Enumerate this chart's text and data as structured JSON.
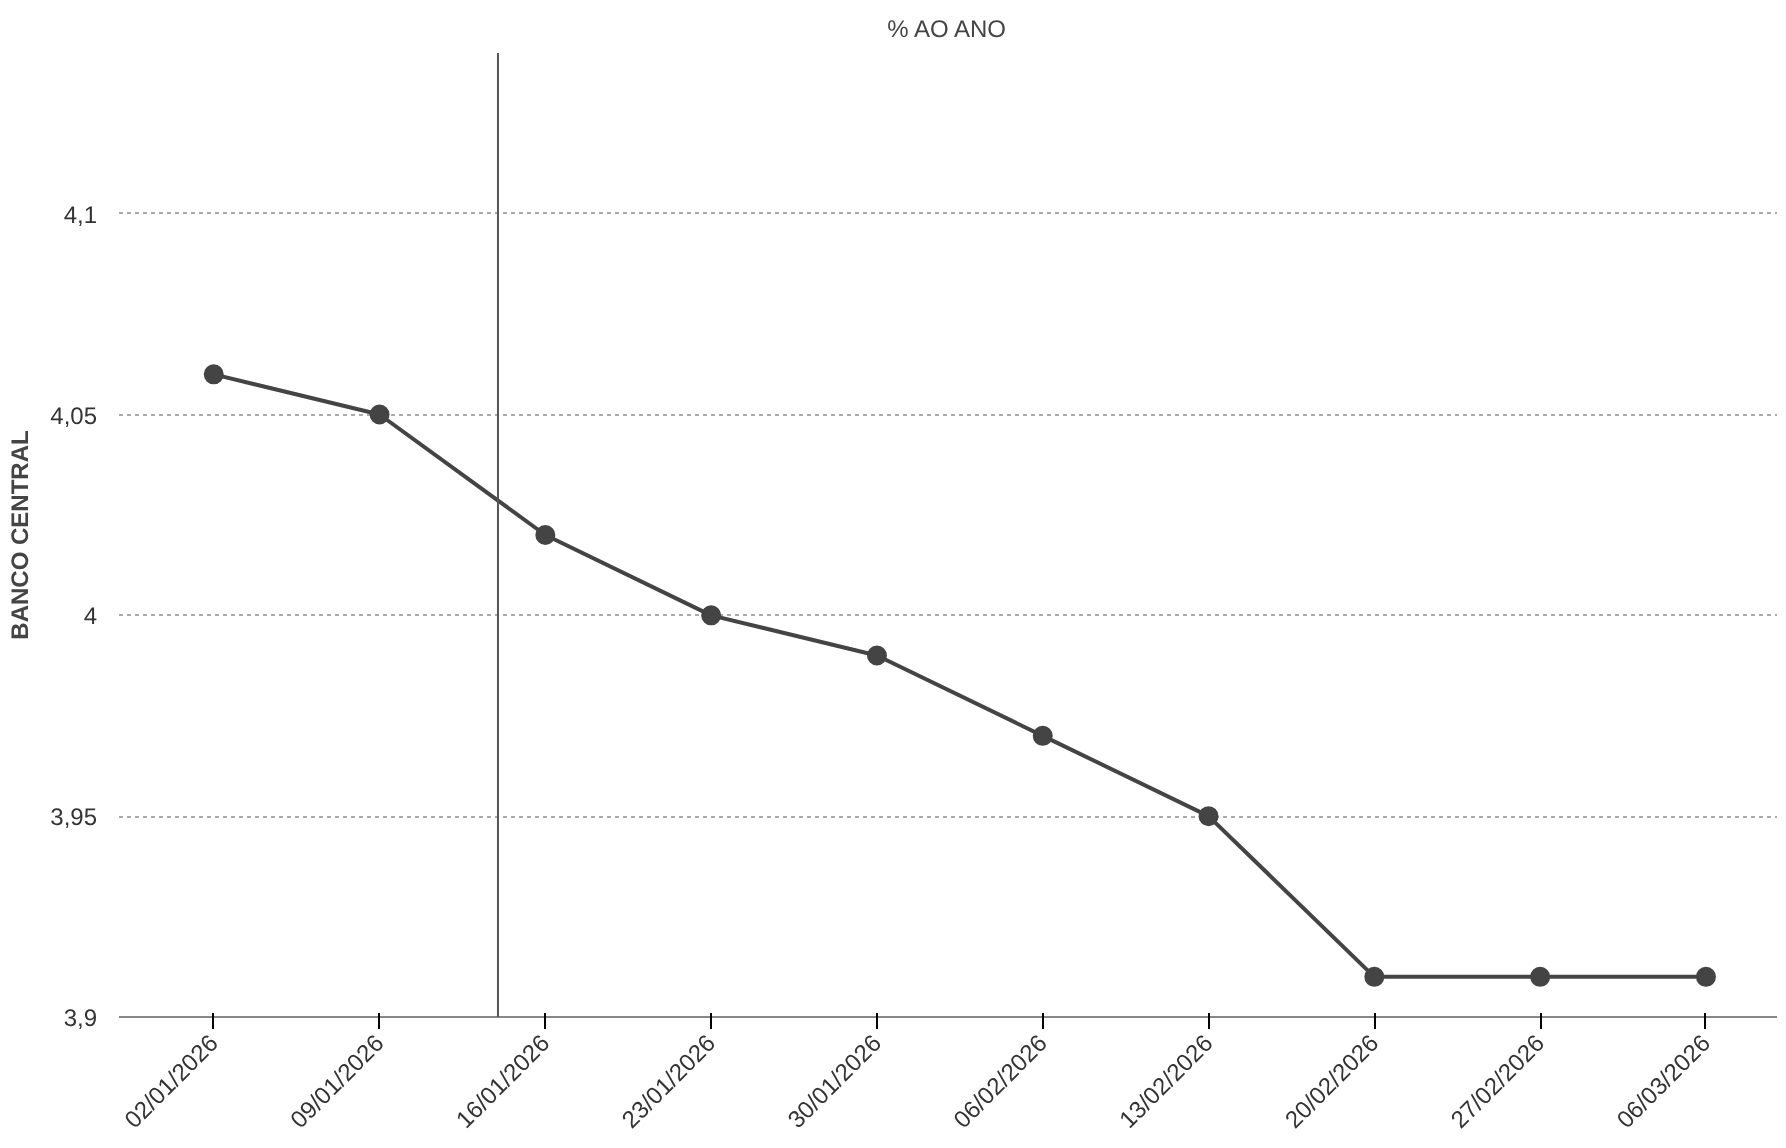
{
  "chart_data": {
    "type": "line",
    "title": "% AO ANO",
    "ylabel": "BANCO CENTRAL",
    "x": [
      "2026-01-02",
      "2026-01-09",
      "2026-01-16",
      "2026-01-23",
      "2026-01-30",
      "2026-02-06",
      "2026-02-13",
      "2026-02-20",
      "2026-02-27",
      "2026-03-06"
    ],
    "series": [
      {
        "color": "#444444",
        "values": [
          4.06,
          4.05,
          4.02,
          4.0,
          3.99,
          3.97,
          3.95,
          3.91,
          3.91,
          3.91
        ]
      }
    ],
    "xlim": [
      "2025-12-29",
      "2026-03-09"
    ],
    "xticks": [
      {
        "value": "2026-01-02",
        "label": "02/01/2026"
      },
      {
        "value": "2026-01-09",
        "label": "09/01/2026"
      },
      {
        "value": "2026-01-16",
        "label": "16/01/2026"
      },
      {
        "value": "2026-01-23",
        "label": "23/01/2026"
      },
      {
        "value": "2026-01-30",
        "label": "30/01/2026"
      },
      {
        "value": "2026-02-06",
        "label": "06/02/2026"
      },
      {
        "value": "2026-02-13",
        "label": "13/02/2026"
      },
      {
        "value": "2026-02-20",
        "label": "20/02/2026"
      },
      {
        "value": "2026-02-27",
        "label": "27/02/2026"
      },
      {
        "value": "2026-03-06",
        "label": "06/03/2026"
      }
    ],
    "ylim": [
      3.9,
      4.14
    ],
    "yticks": [
      {
        "value": 3.9,
        "label": "3,9"
      },
      {
        "value": 3.95,
        "label": "3,95"
      },
      {
        "value": 4,
        "label": "4"
      },
      {
        "value": 4.05,
        "label": "4,05"
      },
      {
        "value": 4.1,
        "label": "4,1"
      }
    ],
    "ref_lines": [
      {
        "axis": "x",
        "value": "2026-01-14",
        "color": "#555555"
      }
    ],
    "grid": "y",
    "marker": "circle",
    "line_style": "solid"
  }
}
